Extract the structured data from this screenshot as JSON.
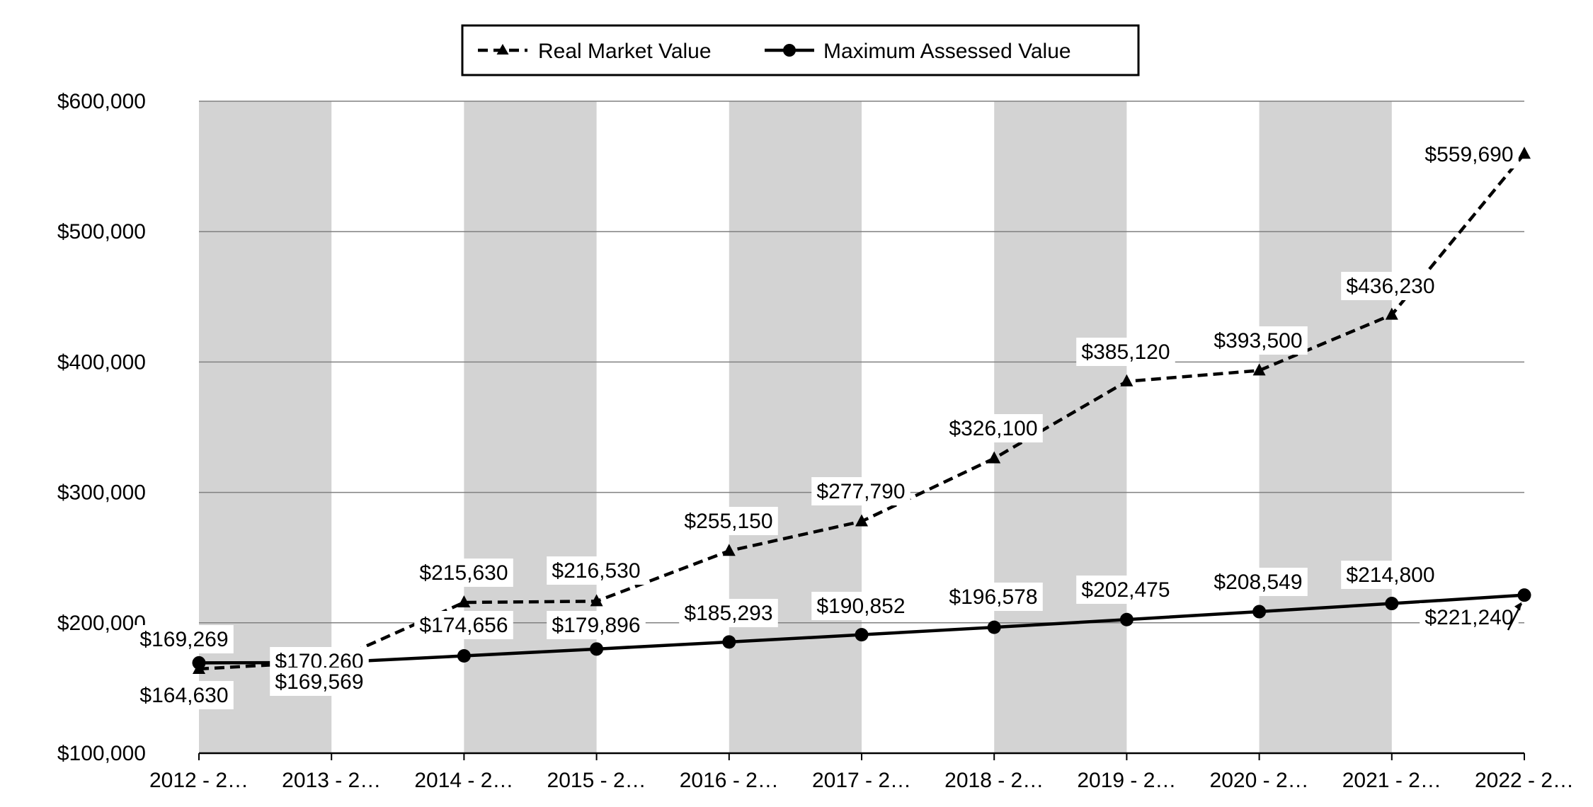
{
  "chart_data": {
    "type": "line",
    "title": "",
    "xlabel": "",
    "ylabel": "",
    "categories": [
      "2012 - 2…",
      "2013 - 2…",
      "2014 - 2…",
      "2015 - 2…",
      "2016 - 2…",
      "2017 - 2…",
      "2018 - 2…",
      "2019 - 2…",
      "2020 - 2…",
      "2021 - 2…",
      "2022 - 2…"
    ],
    "ylim": [
      100000,
      600000
    ],
    "yticks": [
      100000,
      200000,
      300000,
      400000,
      500000,
      600000
    ],
    "ytick_labels": [
      "$100,000",
      "$200,000",
      "$300,000",
      "$400,000",
      "$500,000",
      "$600,000"
    ],
    "grid": true,
    "alternating_bands": true,
    "band_color": "#d3d3d3",
    "legend_position": "top-center",
    "series": [
      {
        "name": "Real Market Value",
        "style": "dashed",
        "marker": "triangle",
        "color": "#000000",
        "values": [
          164630,
          170260,
          215630,
          216530,
          255150,
          277790,
          326100,
          385120,
          393500,
          436230,
          559690
        ],
        "labels": [
          "$164,630",
          "$170,260",
          "$215,630",
          "$216,530",
          "$255,150",
          "$277,790",
          "$326,100",
          "$385,120",
          "$393,500",
          "$436,230",
          "$559,690"
        ]
      },
      {
        "name": "Maximum Assessed Value",
        "style": "solid",
        "marker": "circle",
        "color": "#000000",
        "values": [
          169269,
          169569,
          174656,
          179896,
          185293,
          190852,
          196578,
          202475,
          208549,
          214800,
          221240
        ],
        "labels": [
          "$169,269",
          "$169,569",
          "$174,656",
          "$179,896",
          "$185,293",
          "$190,852",
          "$196,578",
          "$202,475",
          "$208,549",
          "$214,800",
          "$221,240"
        ]
      }
    ]
  }
}
